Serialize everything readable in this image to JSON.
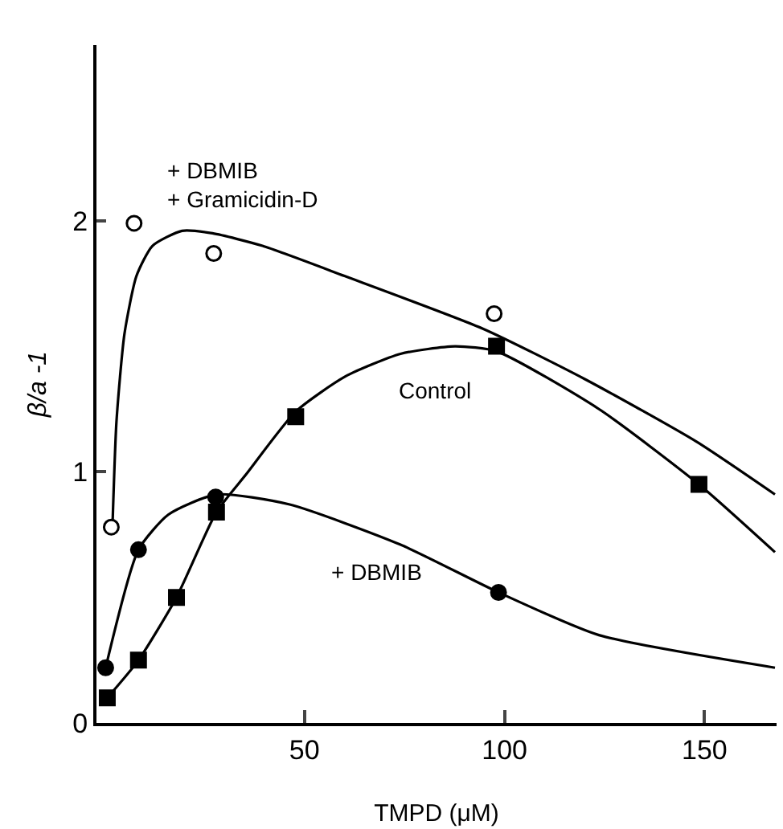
{
  "chart_data": {
    "type": "scatter",
    "xlabel": "TMPD (μM)",
    "ylabel": "β/a -1",
    "xlim": [
      -2,
      168
    ],
    "ylim": [
      0,
      2.7
    ],
    "xticks": [
      50,
      100,
      150
    ],
    "yticks": [
      0,
      1,
      2
    ],
    "series": [
      {
        "type": "line",
        "color": "#000000",
        "x": [
          2,
          3,
          5,
          8,
          12,
          19.4,
          27,
          39.5,
          60,
          94.6,
          120,
          148,
          167.6
        ],
        "values": [
          0.78,
          1.2,
          1.55,
          1.78,
          1.9,
          1.96,
          1.95,
          1.9,
          1.78,
          1.57,
          1.37,
          1.12,
          0.91
        ]
      },
      {
        "type": "line",
        "color": "#000000",
        "x": [
          0.7,
          8.5,
          18,
          28,
          35.4,
          47.8,
          60.2,
          74,
          87.6,
          98,
          123.6,
          148.6,
          167.6
        ],
        "values": [
          0.1,
          0.25,
          0.5,
          0.84,
          0.99,
          1.24,
          1.38,
          1.47,
          1.5,
          1.48,
          1.25,
          0.95,
          0.68
        ]
      },
      {
        "type": "line",
        "color": "#000000",
        "x": [
          0.3,
          8.5,
          16,
          28,
          46.3,
          74,
          98.5,
          123.6,
          167.6
        ],
        "values": [
          0.22,
          0.69,
          0.83,
          0.91,
          0.87,
          0.71,
          0.52,
          0.35,
          0.22
        ]
      },
      {
        "marker": "circle",
        "color": "#ffffff",
        "x": [
          1.7,
          7.4,
          27.3,
          97.4
        ],
        "values": [
          0.78,
          1.99,
          1.87,
          1.63
        ]
      },
      {
        "marker": "square",
        "color": "#000000",
        "x": [
          0.7,
          8.5,
          18,
          28,
          47.8,
          98,
          148.6
        ],
        "values": [
          0.1,
          0.25,
          0.5,
          0.84,
          1.22,
          1.5,
          0.95
        ]
      },
      {
        "marker": "circle",
        "color": "#000000",
        "x": [
          0.3,
          8.5,
          27.8,
          98.5
        ],
        "values": [
          0.22,
          0.69,
          0.9,
          0.52
        ]
      }
    ],
    "annotations": [
      "+ DBMIB\n+ Gramicidin-D",
      "Control",
      "+ DBMIB"
    ]
  }
}
